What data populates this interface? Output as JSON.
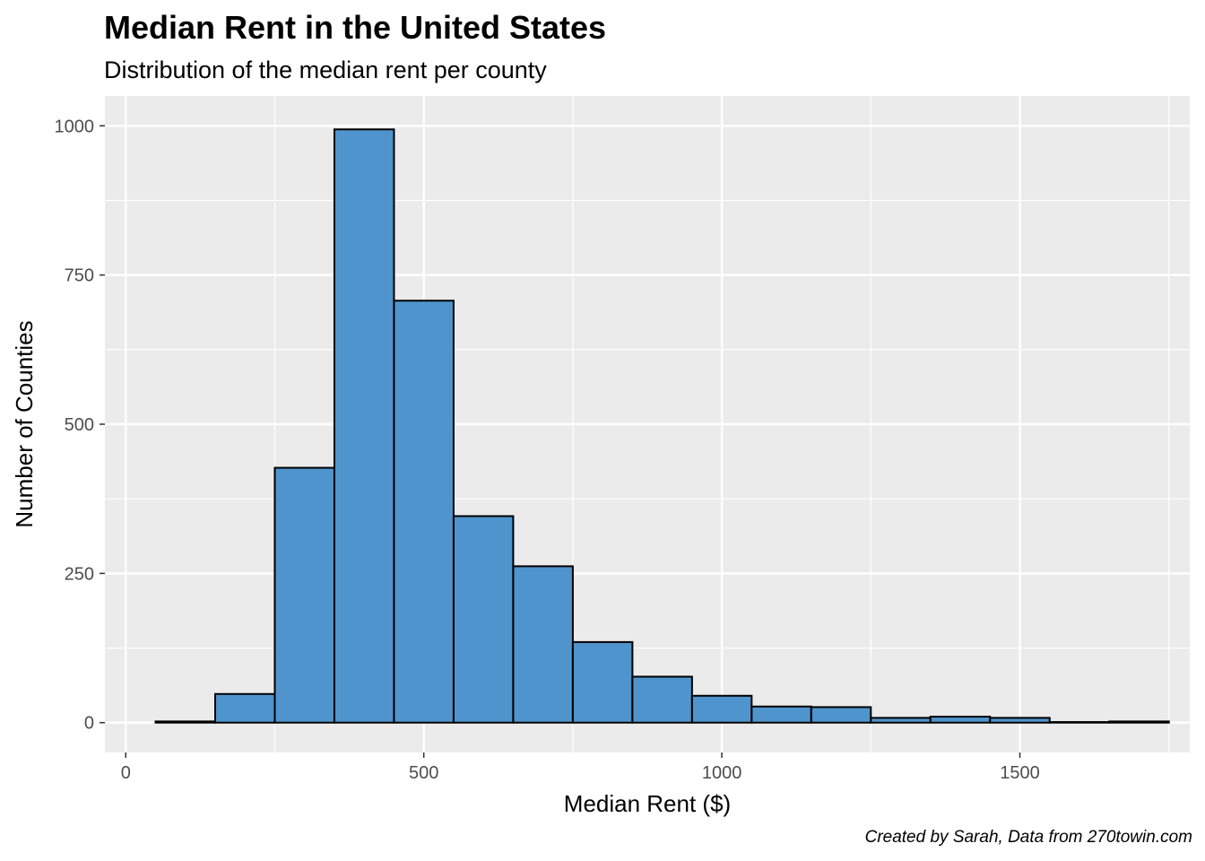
{
  "chart_data": {
    "type": "bar",
    "title": "Median Rent in the United States",
    "subtitle": "Distribution of the median rent per county",
    "xlabel": "Median Rent ($)",
    "ylabel": "Number of Counties",
    "caption": "Created by Sarah, Data from 270towin.com",
    "bin_width": 100,
    "bin_centers": [
      100,
      200,
      300,
      400,
      500,
      600,
      700,
      800,
      900,
      1000,
      1100,
      1200,
      1300,
      1400,
      1500,
      1600,
      1700
    ],
    "values": [
      2,
      48,
      427,
      994,
      707,
      346,
      262,
      135,
      77,
      45,
      27,
      26,
      8,
      10,
      8,
      1,
      2
    ],
    "xlim": [
      -35,
      1785
    ],
    "ylim": [
      -50,
      1050
    ],
    "x_ticks": [
      0,
      500,
      1000,
      1500
    ],
    "y_ticks": [
      0,
      250,
      500,
      750,
      1000
    ],
    "x_tick_labels": [
      "0",
      "500",
      "1000",
      "1500"
    ],
    "y_tick_labels": [
      "0",
      "250",
      "500",
      "750",
      "1000"
    ],
    "grid": true,
    "colors": {
      "bar_fill": "#4f94cd",
      "bar_outline": "#000000",
      "panel_background": "#ebebeb",
      "grid": "#ffffff"
    }
  }
}
